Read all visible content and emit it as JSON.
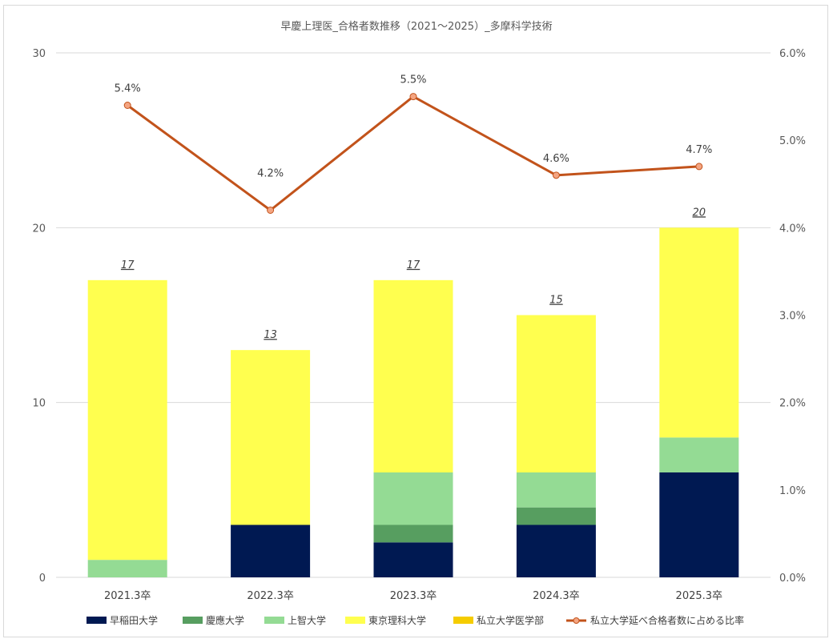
{
  "chart_data": {
    "type": "bar",
    "title": "早慶上理医_合格者数推移（2021～2025）_多摩科学技術",
    "categories": [
      "2021.3卒",
      "2022.3卒",
      "2023.3卒",
      "2024.3卒",
      "2025.3卒"
    ],
    "y_left": {
      "min": 0,
      "max": 30,
      "ticks": [
        "0",
        "10",
        "20",
        "30"
      ]
    },
    "y_right": {
      "min": 0,
      "max": 0.06,
      "ticks": [
        "0.0%",
        "1.0%",
        "2.0%",
        "3.0%",
        "4.0%",
        "5.0%",
        "6.0%"
      ]
    },
    "series": [
      {
        "name": "早稲田大学",
        "kind": "bar",
        "color": "#001952",
        "values": [
          0,
          3,
          2,
          3,
          6
        ]
      },
      {
        "name": "慶應大学",
        "kind": "bar",
        "color": "#579e60",
        "values": [
          0,
          0,
          1,
          1,
          0
        ]
      },
      {
        "name": "上智大学",
        "kind": "bar",
        "color": "#94db94",
        "values": [
          1,
          0,
          3,
          2,
          2
        ]
      },
      {
        "name": "東京理科大学",
        "kind": "bar",
        "color": "#ffff4f",
        "values": [
          16,
          10,
          11,
          9,
          12
        ]
      },
      {
        "name": "私立大学医学部",
        "kind": "bar",
        "color": "#f5cc00",
        "values": [
          0,
          0,
          0,
          0,
          0
        ]
      },
      {
        "name": "私立大学延べ合格者数に占める比率",
        "kind": "line",
        "axis": "right",
        "color": "#c2531b",
        "marker_fill": "#f4a582",
        "values": [
          0.054,
          0.042,
          0.055,
          0.046,
          0.047
        ],
        "labels": [
          "5.4%",
          "4.2%",
          "5.5%",
          "4.6%",
          "4.7%"
        ]
      }
    ],
    "totals": [
      "17",
      "13",
      "17",
      "15",
      "20"
    ],
    "grid": true,
    "legend_position": "bottom"
  }
}
